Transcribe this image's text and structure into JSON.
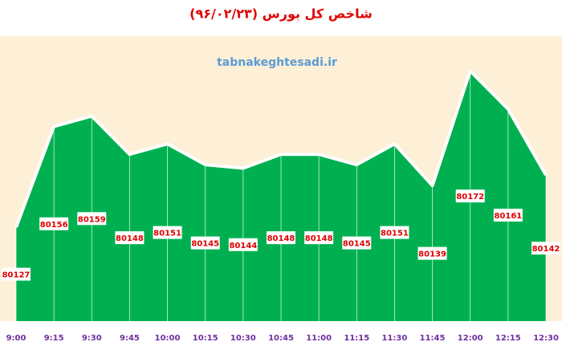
{
  "chart_data": {
    "type": "area",
    "title": "شاخص کل بورس (۹۶/۰۲/۲۳)",
    "watermark": "tabnakeghtesadi.ir",
    "categories": [
      "9:00",
      "9:15",
      "9:30",
      "9:45",
      "10:00",
      "10:15",
      "10:30",
      "10:45",
      "11:00",
      "11:15",
      "11:30",
      "11:45",
      "12:00",
      "12:15",
      "12:30"
    ],
    "values": [
      80127,
      80156,
      80159,
      80148,
      80151,
      80145,
      80144,
      80148,
      80148,
      80145,
      80151,
      80139,
      80172,
      80161,
      80142
    ],
    "color": "#00b050",
    "ylim": [
      80100,
      80182
    ]
  }
}
